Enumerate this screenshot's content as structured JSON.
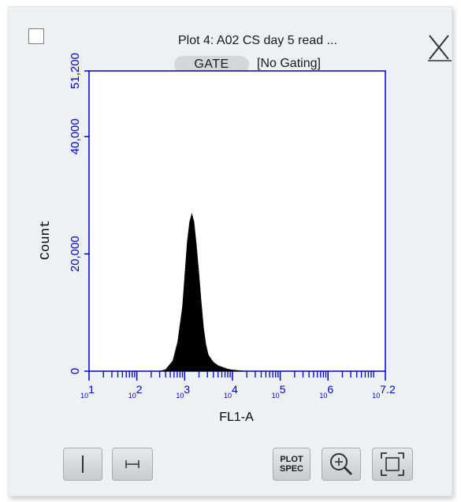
{
  "window": {
    "title": "Plot 4: A02 CS day 5 read ...",
    "gate_label": "GATE",
    "gating_status": "[No Gating]"
  },
  "chart_data": {
    "type": "area",
    "xlabel": "FL1-A",
    "ylabel": "Count",
    "x_scale": "log",
    "x_ticks": [
      {
        "exponent": "1",
        "value": 10
      },
      {
        "exponent": "2",
        "value": 100
      },
      {
        "exponent": "3",
        "value": 1000
      },
      {
        "exponent": "4",
        "value": 10000
      },
      {
        "exponent": "5",
        "value": 100000
      },
      {
        "exponent": "6",
        "value": 1000000
      },
      {
        "exponent": "7.2",
        "value": 15848932
      }
    ],
    "xlim": [
      10,
      15848932
    ],
    "ylim": [
      0,
      51200
    ],
    "y_ticks": [
      "0",
      "20,000",
      "40,000",
      "51,200"
    ],
    "y_tick_values": [
      0,
      20000,
      40000,
      51200
    ],
    "histogram": {
      "log10_x": [
        2.45,
        2.6,
        2.75,
        2.85,
        2.95,
        3.0,
        3.05,
        3.1,
        3.15,
        3.2,
        3.25,
        3.3,
        3.35,
        3.4,
        3.45,
        3.5,
        3.6,
        3.7,
        3.8,
        3.9,
        4.0,
        4.2,
        4.4
      ],
      "counts": [
        0,
        300,
        1800,
        5000,
        11000,
        16500,
        22000,
        25500,
        27000,
        25500,
        21500,
        17000,
        12000,
        7500,
        4500,
        2800,
        1600,
        1000,
        700,
        400,
        250,
        100,
        0
      ]
    },
    "colors": {
      "axis": "#0000cc",
      "fill": "#000000",
      "text": "#000000"
    }
  },
  "toolbar": {
    "plot_spec_line1": "PLOT",
    "plot_spec_line2": "SPEC"
  },
  "icons": [
    "checkbox-icon",
    "close-icon",
    "vertical-gate-icon",
    "range-gate-icon",
    "zoom-in-icon",
    "fit-view-icon"
  ]
}
